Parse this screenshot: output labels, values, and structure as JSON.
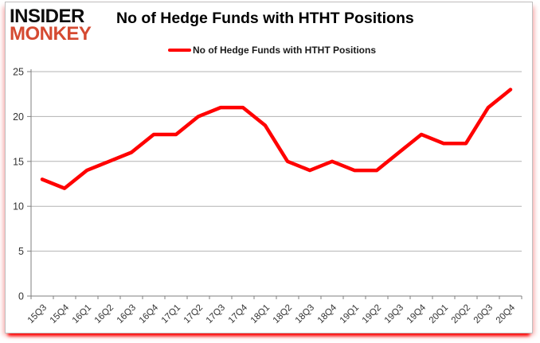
{
  "logo": {
    "line1": "INSIDER",
    "line2": "MONKEY"
  },
  "header": {
    "title": "No of Hedge Funds with HTHT Positions"
  },
  "legend": {
    "label": "No of Hedge Funds with HTHT Positions"
  },
  "colors": {
    "line": "#ff0000",
    "grid": "#b3b3b3",
    "axis": "#7f7f7f",
    "tick_label": "#333333",
    "logo_red": "#d54a31",
    "bottom_bar": "#ff0000"
  },
  "chart_data": {
    "type": "line",
    "title": "No of Hedge Funds with HTHT Positions",
    "xlabel": "",
    "ylabel": "",
    "categories": [
      "15Q3",
      "15Q4",
      "16Q1",
      "16Q2",
      "16Q3",
      "16Q4",
      "17Q1",
      "17Q2",
      "17Q3",
      "17Q4",
      "18Q1",
      "18Q2",
      "18Q3",
      "18Q4",
      "19Q1",
      "19Q2",
      "19Q3",
      "19Q4",
      "20Q1",
      "20Q2",
      "20Q3",
      "20Q4"
    ],
    "series": [
      {
        "name": "No of Hedge Funds with HTHT Positions",
        "values": [
          13,
          12,
          14,
          15,
          16,
          18,
          18,
          20,
          21,
          21,
          19,
          15,
          14,
          15,
          14,
          14,
          16,
          18,
          17,
          17,
          21,
          23
        ]
      }
    ],
    "ylim": [
      0,
      25
    ],
    "yticks": [
      0,
      5,
      10,
      15,
      20,
      25
    ],
    "grid": true,
    "legend_position": "top"
  }
}
